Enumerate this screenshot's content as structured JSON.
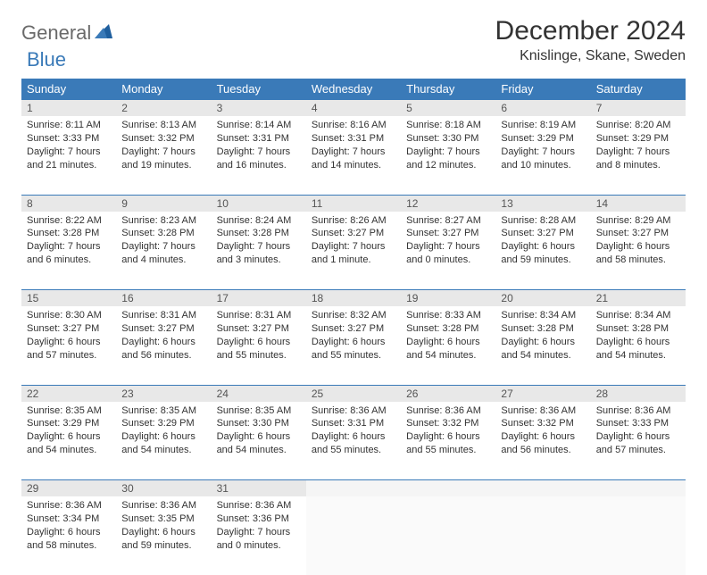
{
  "logo": {
    "part1": "General",
    "part2": "Blue"
  },
  "title": "December 2024",
  "location": "Knislinge, Skane, Sweden",
  "colors": {
    "header_bg": "#3a7ab8",
    "header_fg": "#ffffff",
    "daynum_bg": "#e8e8e8",
    "border": "#3a7ab8",
    "logo_gray": "#6a6a6a",
    "logo_blue": "#3a7ab8"
  },
  "weekdays": [
    "Sunday",
    "Monday",
    "Tuesday",
    "Wednesday",
    "Thursday",
    "Friday",
    "Saturday"
  ],
  "weeks": [
    [
      {
        "day": "1",
        "sunrise": "Sunrise: 8:11 AM",
        "sunset": "Sunset: 3:33 PM",
        "day1": "Daylight: 7 hours",
        "day2": "and 21 minutes."
      },
      {
        "day": "2",
        "sunrise": "Sunrise: 8:13 AM",
        "sunset": "Sunset: 3:32 PM",
        "day1": "Daylight: 7 hours",
        "day2": "and 19 minutes."
      },
      {
        "day": "3",
        "sunrise": "Sunrise: 8:14 AM",
        "sunset": "Sunset: 3:31 PM",
        "day1": "Daylight: 7 hours",
        "day2": "and 16 minutes."
      },
      {
        "day": "4",
        "sunrise": "Sunrise: 8:16 AM",
        "sunset": "Sunset: 3:31 PM",
        "day1": "Daylight: 7 hours",
        "day2": "and 14 minutes."
      },
      {
        "day": "5",
        "sunrise": "Sunrise: 8:18 AM",
        "sunset": "Sunset: 3:30 PM",
        "day1": "Daylight: 7 hours",
        "day2": "and 12 minutes."
      },
      {
        "day": "6",
        "sunrise": "Sunrise: 8:19 AM",
        "sunset": "Sunset: 3:29 PM",
        "day1": "Daylight: 7 hours",
        "day2": "and 10 minutes."
      },
      {
        "day": "7",
        "sunrise": "Sunrise: 8:20 AM",
        "sunset": "Sunset: 3:29 PM",
        "day1": "Daylight: 7 hours",
        "day2": "and 8 minutes."
      }
    ],
    [
      {
        "day": "8",
        "sunrise": "Sunrise: 8:22 AM",
        "sunset": "Sunset: 3:28 PM",
        "day1": "Daylight: 7 hours",
        "day2": "and 6 minutes."
      },
      {
        "day": "9",
        "sunrise": "Sunrise: 8:23 AM",
        "sunset": "Sunset: 3:28 PM",
        "day1": "Daylight: 7 hours",
        "day2": "and 4 minutes."
      },
      {
        "day": "10",
        "sunrise": "Sunrise: 8:24 AM",
        "sunset": "Sunset: 3:28 PM",
        "day1": "Daylight: 7 hours",
        "day2": "and 3 minutes."
      },
      {
        "day": "11",
        "sunrise": "Sunrise: 8:26 AM",
        "sunset": "Sunset: 3:27 PM",
        "day1": "Daylight: 7 hours",
        "day2": "and 1 minute."
      },
      {
        "day": "12",
        "sunrise": "Sunrise: 8:27 AM",
        "sunset": "Sunset: 3:27 PM",
        "day1": "Daylight: 7 hours",
        "day2": "and 0 minutes."
      },
      {
        "day": "13",
        "sunrise": "Sunrise: 8:28 AM",
        "sunset": "Sunset: 3:27 PM",
        "day1": "Daylight: 6 hours",
        "day2": "and 59 minutes."
      },
      {
        "day": "14",
        "sunrise": "Sunrise: 8:29 AM",
        "sunset": "Sunset: 3:27 PM",
        "day1": "Daylight: 6 hours",
        "day2": "and 58 minutes."
      }
    ],
    [
      {
        "day": "15",
        "sunrise": "Sunrise: 8:30 AM",
        "sunset": "Sunset: 3:27 PM",
        "day1": "Daylight: 6 hours",
        "day2": "and 57 minutes."
      },
      {
        "day": "16",
        "sunrise": "Sunrise: 8:31 AM",
        "sunset": "Sunset: 3:27 PM",
        "day1": "Daylight: 6 hours",
        "day2": "and 56 minutes."
      },
      {
        "day": "17",
        "sunrise": "Sunrise: 8:31 AM",
        "sunset": "Sunset: 3:27 PM",
        "day1": "Daylight: 6 hours",
        "day2": "and 55 minutes."
      },
      {
        "day": "18",
        "sunrise": "Sunrise: 8:32 AM",
        "sunset": "Sunset: 3:27 PM",
        "day1": "Daylight: 6 hours",
        "day2": "and 55 minutes."
      },
      {
        "day": "19",
        "sunrise": "Sunrise: 8:33 AM",
        "sunset": "Sunset: 3:28 PM",
        "day1": "Daylight: 6 hours",
        "day2": "and 54 minutes."
      },
      {
        "day": "20",
        "sunrise": "Sunrise: 8:34 AM",
        "sunset": "Sunset: 3:28 PM",
        "day1": "Daylight: 6 hours",
        "day2": "and 54 minutes."
      },
      {
        "day": "21",
        "sunrise": "Sunrise: 8:34 AM",
        "sunset": "Sunset: 3:28 PM",
        "day1": "Daylight: 6 hours",
        "day2": "and 54 minutes."
      }
    ],
    [
      {
        "day": "22",
        "sunrise": "Sunrise: 8:35 AM",
        "sunset": "Sunset: 3:29 PM",
        "day1": "Daylight: 6 hours",
        "day2": "and 54 minutes."
      },
      {
        "day": "23",
        "sunrise": "Sunrise: 8:35 AM",
        "sunset": "Sunset: 3:29 PM",
        "day1": "Daylight: 6 hours",
        "day2": "and 54 minutes."
      },
      {
        "day": "24",
        "sunrise": "Sunrise: 8:35 AM",
        "sunset": "Sunset: 3:30 PM",
        "day1": "Daylight: 6 hours",
        "day2": "and 54 minutes."
      },
      {
        "day": "25",
        "sunrise": "Sunrise: 8:36 AM",
        "sunset": "Sunset: 3:31 PM",
        "day1": "Daylight: 6 hours",
        "day2": "and 55 minutes."
      },
      {
        "day": "26",
        "sunrise": "Sunrise: 8:36 AM",
        "sunset": "Sunset: 3:32 PM",
        "day1": "Daylight: 6 hours",
        "day2": "and 55 minutes."
      },
      {
        "day": "27",
        "sunrise": "Sunrise: 8:36 AM",
        "sunset": "Sunset: 3:32 PM",
        "day1": "Daylight: 6 hours",
        "day2": "and 56 minutes."
      },
      {
        "day": "28",
        "sunrise": "Sunrise: 8:36 AM",
        "sunset": "Sunset: 3:33 PM",
        "day1": "Daylight: 6 hours",
        "day2": "and 57 minutes."
      }
    ],
    [
      {
        "day": "29",
        "sunrise": "Sunrise: 8:36 AM",
        "sunset": "Sunset: 3:34 PM",
        "day1": "Daylight: 6 hours",
        "day2": "and 58 minutes."
      },
      {
        "day": "30",
        "sunrise": "Sunrise: 8:36 AM",
        "sunset": "Sunset: 3:35 PM",
        "day1": "Daylight: 6 hours",
        "day2": "and 59 minutes."
      },
      {
        "day": "31",
        "sunrise": "Sunrise: 8:36 AM",
        "sunset": "Sunset: 3:36 PM",
        "day1": "Daylight: 7 hours",
        "day2": "and 0 minutes."
      },
      null,
      null,
      null,
      null
    ]
  ]
}
